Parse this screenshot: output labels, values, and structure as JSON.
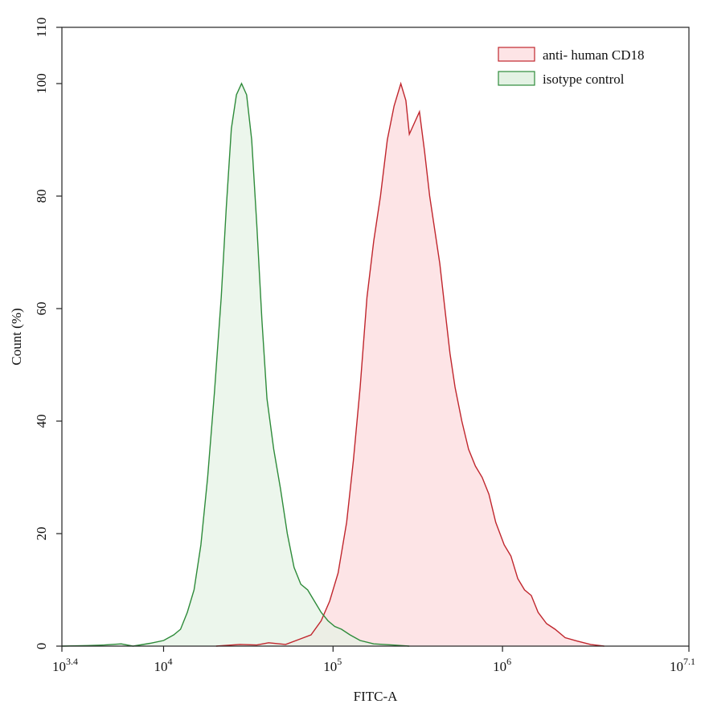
{
  "chart_data": {
    "type": "area",
    "xlabel": "FITC-A",
    "ylabel": "Count  (%)",
    "xscale": "log",
    "xlim_log10": [
      3.4,
      7.1
    ],
    "ylim": [
      0,
      110
    ],
    "grid": false,
    "legend_position": "top-right",
    "x_ticks": [
      {
        "base": "10",
        "exp": "3.4",
        "value_log10": 3.4
      },
      {
        "base": "10",
        "exp": "4",
        "value_log10": 4
      },
      {
        "base": "10",
        "exp": "5",
        "value_log10": 5
      },
      {
        "base": "10",
        "exp": "6",
        "value_log10": 6
      },
      {
        "base": "10",
        "exp": "7.1",
        "value_log10": 7.1
      }
    ],
    "y_ticks": [
      "0",
      "20",
      "40",
      "60",
      "80",
      "100",
      "110"
    ],
    "series": [
      {
        "name": "anti- human CD18",
        "stroke": "#c0262d",
        "fill": "#fde4e6",
        "points_log10x_y": [
          [
            4.31,
            0
          ],
          [
            4.45,
            0.3
          ],
          [
            4.55,
            0.2
          ],
          [
            4.62,
            0.6
          ],
          [
            4.72,
            0.3
          ],
          [
            4.8,
            1.2
          ],
          [
            4.87,
            2
          ],
          [
            4.93,
            4.5
          ],
          [
            4.98,
            8
          ],
          [
            5.03,
            13
          ],
          [
            5.08,
            22
          ],
          [
            5.12,
            33
          ],
          [
            5.16,
            46
          ],
          [
            5.2,
            62
          ],
          [
            5.24,
            72
          ],
          [
            5.28,
            80
          ],
          [
            5.32,
            90
          ],
          [
            5.36,
            96
          ],
          [
            5.4,
            100
          ],
          [
            5.43,
            97
          ],
          [
            5.45,
            91
          ],
          [
            5.48,
            93
          ],
          [
            5.51,
            95
          ],
          [
            5.54,
            88
          ],
          [
            5.57,
            80
          ],
          [
            5.6,
            74
          ],
          [
            5.63,
            68
          ],
          [
            5.66,
            60
          ],
          [
            5.69,
            52
          ],
          [
            5.72,
            46
          ],
          [
            5.76,
            40
          ],
          [
            5.8,
            35
          ],
          [
            5.84,
            32
          ],
          [
            5.88,
            30
          ],
          [
            5.92,
            27
          ],
          [
            5.96,
            22
          ],
          [
            6.01,
            18
          ],
          [
            6.05,
            16
          ],
          [
            6.09,
            12
          ],
          [
            6.13,
            10
          ],
          [
            6.17,
            9
          ],
          [
            6.21,
            6
          ],
          [
            6.26,
            4
          ],
          [
            6.31,
            3
          ],
          [
            6.37,
            1.5
          ],
          [
            6.44,
            0.9
          ],
          [
            6.52,
            0.3
          ],
          [
            6.6,
            0
          ]
        ]
      },
      {
        "name": "isotype control",
        "stroke": "#2e8b3a",
        "fill": "#e4f2e4",
        "points_log10x_y": [
          [
            3.4,
            0
          ],
          [
            3.55,
            0.1
          ],
          [
            3.65,
            0.2
          ],
          [
            3.75,
            0.4
          ],
          [
            3.82,
            0
          ],
          [
            3.92,
            0.5
          ],
          [
            4.0,
            1
          ],
          [
            4.06,
            2
          ],
          [
            4.1,
            3
          ],
          [
            4.14,
            6
          ],
          [
            4.18,
            10
          ],
          [
            4.22,
            18
          ],
          [
            4.26,
            30
          ],
          [
            4.3,
            45
          ],
          [
            4.34,
            62
          ],
          [
            4.37,
            78
          ],
          [
            4.4,
            92
          ],
          [
            4.43,
            98
          ],
          [
            4.46,
            100
          ],
          [
            4.49,
            98
          ],
          [
            4.52,
            90
          ],
          [
            4.55,
            75
          ],
          [
            4.58,
            58
          ],
          [
            4.61,
            44
          ],
          [
            4.65,
            35
          ],
          [
            4.69,
            28
          ],
          [
            4.73,
            20
          ],
          [
            4.77,
            14
          ],
          [
            4.81,
            11
          ],
          [
            4.85,
            10
          ],
          [
            4.89,
            8
          ],
          [
            4.93,
            6
          ],
          [
            4.97,
            4.5
          ],
          [
            5.01,
            3.5
          ],
          [
            5.05,
            3
          ],
          [
            5.1,
            2
          ],
          [
            5.16,
            1
          ],
          [
            5.24,
            0.4
          ],
          [
            5.35,
            0.2
          ],
          [
            5.45,
            0
          ]
        ]
      }
    ]
  }
}
